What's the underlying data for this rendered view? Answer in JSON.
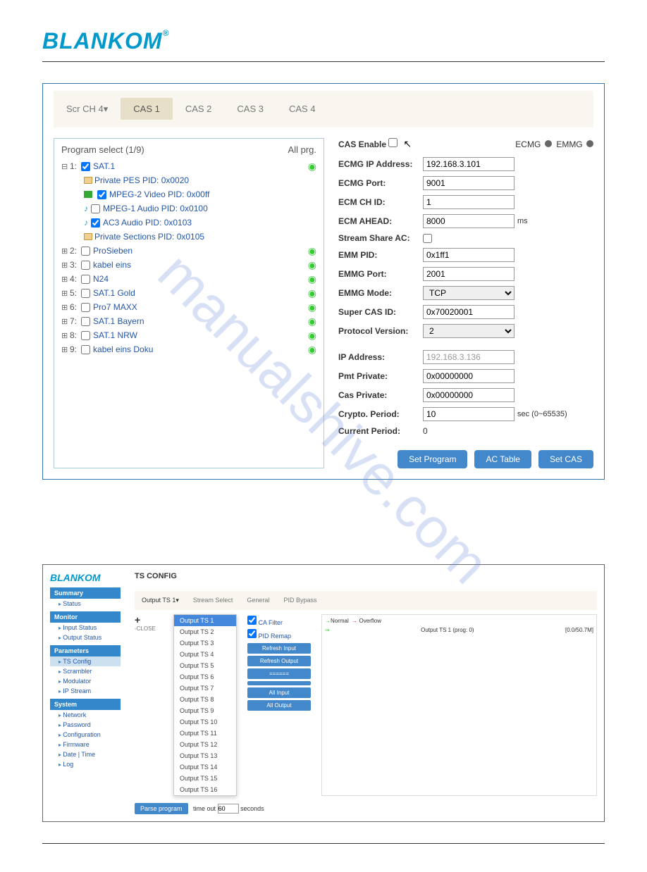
{
  "logo": "BLANKOM",
  "watermark": "manualshive.com",
  "panel1": {
    "tabs": [
      "Scr CH 4▾",
      "CAS 1",
      "CAS 2",
      "CAS 3",
      "CAS 4"
    ],
    "active_tab": 1,
    "tree_header": "Program select (1/9)",
    "tree_header_right": "All prg.",
    "programs": [
      {
        "num": "1:",
        "label": "SAT.1",
        "checked": true,
        "expanded": true,
        "children": [
          {
            "icon": "doc",
            "label": "Private PES PID: 0x0020",
            "cb": false
          },
          {
            "icon": "vid",
            "label": "MPEG-2 Video PID: 0x00ff",
            "cb": true,
            "checked": true
          },
          {
            "icon": "aud",
            "label": "MPEG-1 Audio PID: 0x0100",
            "cb": true,
            "checked": false
          },
          {
            "icon": "aud",
            "label": "AC3 Audio PID: 0x0103",
            "cb": true,
            "checked": true
          },
          {
            "icon": "doc",
            "label": "Private Sections PID: 0x0105",
            "cb": false
          }
        ]
      },
      {
        "num": "2:",
        "label": "ProSieben",
        "checked": false
      },
      {
        "num": "3:",
        "label": "kabel eins",
        "checked": false
      },
      {
        "num": "4:",
        "label": "N24",
        "checked": false
      },
      {
        "num": "5:",
        "label": "SAT.1 Gold",
        "checked": false
      },
      {
        "num": "6:",
        "label": "Pro7 MAXX",
        "checked": false
      },
      {
        "num": "7:",
        "label": "SAT.1 Bayern",
        "checked": false
      },
      {
        "num": "8:",
        "label": "SAT.1 NRW",
        "checked": false
      },
      {
        "num": "9:",
        "label": "kabel eins Doku",
        "checked": false
      }
    ],
    "cas_enable_label": "CAS Enable",
    "ecmg_label": "ECMG",
    "emmg_label": "EMMG",
    "fields": [
      {
        "label": "ECMG IP Address:",
        "value": "192.168.3.101",
        "type": "text"
      },
      {
        "label": "ECMG Port:",
        "value": "9001",
        "type": "text"
      },
      {
        "label": "ECM CH ID:",
        "value": "1",
        "type": "text"
      },
      {
        "label": "ECM AHEAD:",
        "value": "8000",
        "type": "text",
        "unit": "ms"
      },
      {
        "label": "Stream Share AC:",
        "type": "checkbox"
      },
      {
        "label": "EMM PID:",
        "value": "0x1ff1",
        "type": "text"
      },
      {
        "label": "EMMG Port:",
        "value": "2001",
        "type": "text"
      },
      {
        "label": "EMMG Mode:",
        "value": "TCP",
        "type": "select"
      },
      {
        "label": "Super CAS ID:",
        "value": "0x70020001",
        "type": "text"
      },
      {
        "label": "Protocol Version:",
        "value": "2",
        "type": "select"
      },
      {
        "sep": true
      },
      {
        "label": "IP Address:",
        "value": "192.168.3.136",
        "type": "text",
        "readonly": true
      },
      {
        "label": "Pmt Private:",
        "value": "0x00000000",
        "type": "text"
      },
      {
        "label": "Cas Private:",
        "value": "0x00000000",
        "type": "text"
      },
      {
        "label": "Crypto. Period:",
        "value": "10",
        "type": "text",
        "unit": "sec (0~65535)"
      },
      {
        "label": "Current Period:",
        "value": "0",
        "type": "static"
      }
    ],
    "buttons": [
      "Set Program",
      "AC Table",
      "Set CAS"
    ]
  },
  "panel2": {
    "title": "TS CONFIG",
    "sidebar": {
      "sections": [
        {
          "title": "Summary",
          "links": [
            "Status"
          ]
        },
        {
          "title": "Monitor",
          "links": [
            "Input Status",
            "Output Status"
          ]
        },
        {
          "title": "Parameters",
          "links": [
            "TS Config",
            "Scrambler",
            "Modulator",
            "IP Stream"
          ],
          "active": "TS Config"
        },
        {
          "title": "System",
          "links": [
            "Network",
            "Password",
            "Configuration",
            "Firmware",
            "Date | Time",
            "Log"
          ]
        }
      ]
    },
    "tabs": [
      "Output TS 1▾",
      "Stream Select",
      "General",
      "PID Bypass"
    ],
    "dropdown_selected": "Output TS 1",
    "dropdown_options": [
      "Output TS 1",
      "Output TS 2",
      "Output TS 3",
      "Output TS 4",
      "Output TS 5",
      "Output TS 6",
      "Output TS 7",
      "Output TS 8",
      "Output TS 9",
      "Output TS 10",
      "Output TS 11",
      "Output TS 12",
      "Output TS 13",
      "Output TS 14",
      "Output TS 15",
      "Output TS 16"
    ],
    "left_label_top": "+",
    "left_label": "-CLOSE",
    "mid_checks": [
      "CA Filter",
      "PID Remap"
    ],
    "mid_btns": [
      "Refresh Input",
      "Refresh Output",
      "======",
      "",
      "All Input",
      "All Output"
    ],
    "right_legend_normal": "Normal",
    "right_legend_overflow": "Overflow",
    "right_item": "Output TS 1 (prog: 0)",
    "right_val": "[0.0/50.7M]",
    "bottom_btn": "Parse program",
    "bottom_label": "time out",
    "bottom_val": "60",
    "bottom_unit": "seconds"
  }
}
